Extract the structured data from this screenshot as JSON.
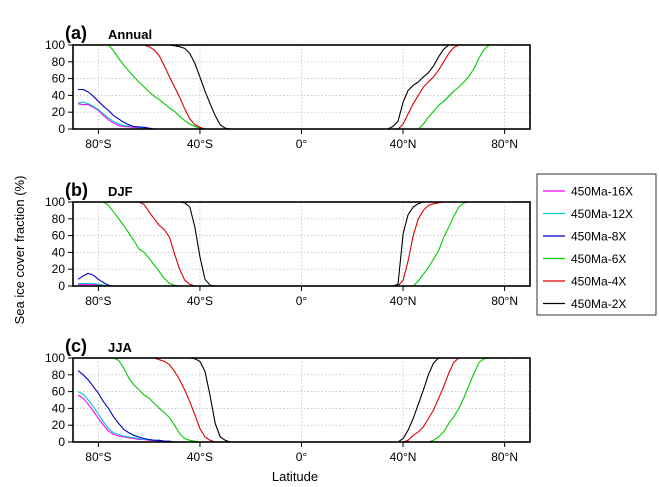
{
  "figure": {
    "ylabel": "Sea ice cover fraction (%)",
    "xlabel": "Latitude"
  },
  "legend": {
    "placement": "right",
    "entries": [
      {
        "label": "450Ma-16X",
        "color": "#ff00ff"
      },
      {
        "label": "450Ma-12X",
        "color": "#00cccc"
      },
      {
        "label": "450Ma-8X",
        "color": "#0000cc"
      },
      {
        "label": "450Ma-6X",
        "color": "#00cc00"
      },
      {
        "label": "450Ma-4X",
        "color": "#dd0000"
      },
      {
        "label": "450Ma-2X",
        "color": "#000000"
      }
    ]
  },
  "chart_data": [
    {
      "type": "line",
      "panel_letter": "(a)",
      "title": "Annual",
      "xlim": [
        -90,
        90
      ],
      "ylim": [
        0,
        100
      ],
      "x_ticks": [
        -80,
        -40,
        0,
        40,
        80
      ],
      "x_tick_labels": [
        "80°S",
        "40°S",
        "0°",
        "40°N",
        "80°N"
      ],
      "y_ticks": [
        0,
        20,
        40,
        60,
        80,
        100
      ],
      "y_tick_labels": [
        "0",
        "20",
        "40",
        "60",
        "80",
        "100"
      ],
      "grid": true,
      "series": [
        {
          "name": "450Ma-16X",
          "color": "#ff00ff",
          "x": [
            -88,
            -86,
            -84,
            -82,
            -80,
            -78,
            -76,
            -74,
            -72,
            -70,
            -66,
            -62,
            -60,
            -58
          ],
          "y": [
            30,
            29,
            29,
            26,
            22,
            16,
            11,
            7,
            4,
            3,
            2,
            1,
            0,
            0
          ]
        },
        {
          "name": "450Ma-12X",
          "color": "#00cccc",
          "x": [
            -88,
            -86,
            -84,
            -82,
            -80,
            -78,
            -76,
            -74,
            -72,
            -70,
            -66,
            -62,
            -60,
            -58
          ],
          "y": [
            31,
            32,
            30,
            27,
            23,
            18,
            13,
            9,
            6,
            4,
            3,
            1,
            0,
            0
          ]
        },
        {
          "name": "450Ma-8X",
          "color": "#0000cc",
          "x": [
            -88,
            -86,
            -84,
            -82,
            -80,
            -78,
            -76,
            -74,
            -72,
            -70,
            -68,
            -66,
            -62,
            -60,
            -58
          ],
          "y": [
            47,
            47,
            44,
            39,
            33,
            27,
            22,
            16,
            12,
            8,
            5,
            3,
            2,
            1,
            0
          ]
        },
        {
          "name": "450Ma-6X",
          "color": "#00cc00",
          "x": [
            -90,
            -76,
            -74,
            -72,
            -70,
            -68,
            -66,
            -64,
            -62,
            -60,
            -58,
            -56,
            -54,
            -52,
            -50,
            -48,
            -46,
            -44,
            -42,
            -40,
            -38,
            -36,
            -90,
            46,
            48,
            50,
            52,
            54,
            56,
            58,
            60,
            62,
            64,
            66,
            68,
            70,
            72,
            74,
            90
          ],
          "y": [
            100,
            100,
            93,
            84,
            76,
            69,
            62,
            56,
            50,
            44,
            39,
            35,
            30,
            25,
            21,
            15,
            10,
            6,
            3,
            1,
            0,
            0,
            null,
            0,
            6,
            14,
            21,
            28,
            33,
            39,
            45,
            50,
            56,
            63,
            72,
            85,
            95,
            100,
            100
          ]
        },
        {
          "name": "450Ma-4X",
          "color": "#dd0000",
          "x": [
            -90,
            -62,
            -60,
            -58,
            -56,
            -54,
            -52,
            -50,
            -48,
            -46,
            -44,
            -42,
            -40,
            -38,
            -36,
            null,
            38,
            40,
            42,
            44,
            46,
            48,
            50,
            52,
            54,
            56,
            58,
            60,
            62,
            64,
            90
          ],
          "y": [
            100,
            100,
            98,
            94,
            87,
            75,
            62,
            50,
            38,
            24,
            12,
            5,
            2,
            0,
            0,
            null,
            0,
            6,
            18,
            30,
            40,
            50,
            56,
            62,
            70,
            80,
            90,
            97,
            100,
            100,
            100
          ]
        },
        {
          "name": "450Ma-2X",
          "color": "#000000",
          "x": [
            -90,
            -52,
            -50,
            -48,
            -46,
            -44,
            -42,
            -40,
            -38,
            -36,
            -34,
            -32,
            -30,
            -28,
            null,
            34,
            36,
            38,
            40,
            42,
            44,
            46,
            48,
            50,
            52,
            54,
            56,
            58,
            60,
            62,
            90
          ],
          "y": [
            100,
            100,
            99,
            98,
            96,
            90,
            78,
            62,
            45,
            30,
            16,
            5,
            1,
            0,
            null,
            0,
            3,
            9,
            32,
            46,
            52,
            56,
            62,
            67,
            75,
            86,
            95,
            100,
            100,
            100,
            100
          ]
        }
      ]
    },
    {
      "type": "line",
      "panel_letter": "(b)",
      "title": "DJF",
      "xlim": [
        -90,
        90
      ],
      "ylim": [
        0,
        100
      ],
      "x_ticks": [
        -80,
        -40,
        0,
        40,
        80
      ],
      "x_tick_labels": [
        "80°S",
        "40°S",
        "0°",
        "40°N",
        "80°N"
      ],
      "y_ticks": [
        0,
        20,
        40,
        60,
        80,
        100
      ],
      "y_tick_labels": [
        "0",
        "20",
        "40",
        "60",
        "80",
        "100"
      ],
      "grid": true,
      "series": [
        {
          "name": "450Ma-16X",
          "color": "#ff00ff",
          "x": [
            -88,
            -86,
            -84,
            -82,
            -80,
            -78,
            -76,
            -74
          ],
          "y": [
            2,
            2,
            2,
            2,
            1,
            1,
            0,
            0
          ]
        },
        {
          "name": "450Ma-12X",
          "color": "#00cccc",
          "x": [
            -88,
            -86,
            -84,
            -82,
            -80,
            -78,
            -76,
            -74
          ],
          "y": [
            3,
            3,
            3,
            3,
            2,
            1,
            0,
            0
          ]
        },
        {
          "name": "450Ma-8X",
          "color": "#0000cc",
          "x": [
            -88,
            -86,
            -84,
            -82,
            -80,
            -78,
            -76,
            -74
          ],
          "y": [
            8,
            12,
            15,
            13,
            8,
            4,
            1,
            0
          ]
        },
        {
          "name": "450Ma-6X",
          "color": "#00cc00",
          "x": [
            -90,
            -78,
            -76,
            -74,
            -72,
            -70,
            -68,
            -66,
            -64,
            -62,
            -60,
            -58,
            -56,
            -54,
            -52,
            -50,
            -48,
            -46,
            null,
            44,
            46,
            48,
            50,
            52,
            54,
            56,
            58,
            60,
            62,
            64,
            66,
            90
          ],
          "y": [
            100,
            100,
            96,
            88,
            80,
            72,
            63,
            54,
            44,
            40,
            33,
            25,
            17,
            9,
            3,
            1,
            0,
            0,
            null,
            0,
            6,
            14,
            22,
            32,
            42,
            58,
            70,
            83,
            94,
            99,
            100,
            100
          ]
        },
        {
          "name": "450Ma-4X",
          "color": "#dd0000",
          "x": [
            -90,
            -64,
            -62,
            -60,
            -58,
            -56,
            -54,
            -52,
            -50,
            -48,
            -46,
            -44,
            -42,
            -40,
            null,
            38,
            40,
            42,
            44,
            46,
            48,
            50,
            52,
            54,
            56,
            58,
            60,
            90
          ],
          "y": [
            100,
            100,
            97,
            88,
            80,
            72,
            67,
            58,
            38,
            20,
            7,
            2,
            0,
            0,
            null,
            0,
            7,
            30,
            60,
            80,
            90,
            96,
            98,
            99,
            100,
            100,
            100,
            100
          ]
        },
        {
          "name": "450Ma-2X",
          "color": "#000000",
          "x": [
            -90,
            -48,
            -46,
            -44,
            -42,
            -40,
            -38,
            -36,
            -34,
            null,
            36,
            38,
            40,
            42,
            44,
            46,
            48,
            50,
            52,
            90
          ],
          "y": [
            100,
            100,
            99,
            94,
            70,
            35,
            8,
            1,
            0,
            null,
            0,
            2,
            62,
            85,
            94,
            98,
            100,
            100,
            100,
            100
          ]
        }
      ]
    },
    {
      "type": "line",
      "panel_letter": "(c)",
      "title": "JJA",
      "xlim": [
        -90,
        90
      ],
      "ylim": [
        0,
        100
      ],
      "x_ticks": [
        -80,
        -40,
        0,
        40,
        80
      ],
      "x_tick_labels": [
        "80°S",
        "40°S",
        "0°",
        "40°N",
        "80°N"
      ],
      "y_ticks": [
        0,
        20,
        40,
        60,
        80,
        100
      ],
      "y_tick_labels": [
        "0",
        "20",
        "40",
        "60",
        "80",
        "100"
      ],
      "grid": true,
      "series": [
        {
          "name": "450Ma-16X",
          "color": "#ff00ff",
          "x": [
            -88,
            -86,
            -84,
            -82,
            -80,
            -78,
            -76,
            -74,
            -72,
            -70,
            -68,
            -66,
            -64,
            -62,
            -60,
            -58,
            -56,
            -54,
            -52,
            -50
          ],
          "y": [
            56,
            52,
            45,
            37,
            28,
            20,
            13,
            9,
            7,
            6,
            5,
            4,
            3,
            3,
            2,
            2,
            1,
            1,
            0,
            0
          ]
        },
        {
          "name": "450Ma-12X",
          "color": "#00cccc",
          "x": [
            -88,
            -86,
            -84,
            -82,
            -80,
            -78,
            -76,
            -74,
            -72,
            -70,
            -68,
            -66,
            -64,
            -62,
            -60,
            -58,
            -56,
            -54,
            -52,
            -50
          ],
          "y": [
            60,
            57,
            50,
            42,
            33,
            24,
            16,
            11,
            9,
            7,
            6,
            5,
            4,
            3,
            3,
            2,
            2,
            1,
            0,
            0
          ]
        },
        {
          "name": "450Ma-8X",
          "color": "#0000cc",
          "x": [
            -88,
            -86,
            -84,
            -82,
            -80,
            -78,
            -76,
            -74,
            -72,
            -70,
            -68,
            -66,
            -64,
            -62,
            -60,
            -58,
            -56,
            -54,
            -52,
            -50,
            -48
          ],
          "y": [
            85,
            80,
            74,
            66,
            58,
            48,
            40,
            30,
            22,
            15,
            11,
            8,
            6,
            4,
            3,
            2,
            2,
            1,
            1,
            0,
            0
          ]
        },
        {
          "name": "450Ma-6X",
          "color": "#00cc00",
          "x": [
            -90,
            -74,
            -72,
            -70,
            -68,
            -66,
            -64,
            -62,
            -60,
            -58,
            -56,
            -54,
            -52,
            -50,
            -48,
            -46,
            -44,
            -42,
            -40,
            -38,
            null,
            50,
            52,
            54,
            56,
            58,
            60,
            62,
            64,
            66,
            68,
            70,
            72,
            74,
            90
          ],
          "y": [
            100,
            100,
            97,
            88,
            76,
            68,
            62,
            56,
            52,
            46,
            40,
            35,
            29,
            20,
            10,
            4,
            2,
            1,
            0,
            0,
            null,
            0,
            2,
            6,
            12,
            22,
            30,
            40,
            53,
            68,
            82,
            95,
            99,
            100,
            100
          ]
        },
        {
          "name": "450Ma-4X",
          "color": "#dd0000",
          "x": [
            -90,
            -58,
            -56,
            -54,
            -52,
            -50,
            -48,
            -46,
            -44,
            -42,
            -40,
            -38,
            -36,
            -34,
            -32,
            null,
            40,
            42,
            44,
            46,
            48,
            50,
            52,
            54,
            56,
            58,
            60,
            62,
            90
          ],
          "y": [
            100,
            100,
            98,
            96,
            92,
            84,
            74,
            62,
            48,
            32,
            16,
            6,
            2,
            0,
            0,
            null,
            0,
            2,
            8,
            12,
            18,
            28,
            38,
            52,
            66,
            82,
            95,
            100,
            100
          ]
        },
        {
          "name": "450Ma-2X",
          "color": "#000000",
          "x": [
            -90,
            -44,
            -42,
            -40,
            -38,
            -36,
            -34,
            -32,
            -30,
            -28,
            -26,
            null,
            38,
            40,
            42,
            44,
            46,
            48,
            50,
            52,
            54,
            56,
            58,
            90
          ],
          "y": [
            100,
            100,
            99,
            96,
            84,
            55,
            22,
            6,
            2,
            0,
            0,
            null,
            0,
            4,
            14,
            28,
            45,
            62,
            80,
            94,
            100,
            100,
            100,
            100
          ]
        }
      ]
    }
  ]
}
